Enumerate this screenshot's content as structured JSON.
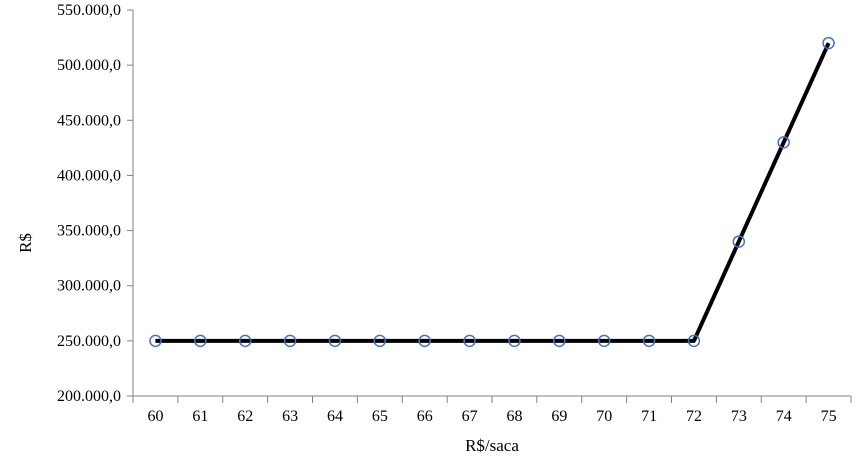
{
  "chart_data": {
    "type": "line",
    "title": "",
    "xlabel": "R$/saca",
    "ylabel": "R$",
    "categories": [
      "60",
      "61",
      "62",
      "63",
      "64",
      "65",
      "66",
      "67",
      "68",
      "69",
      "70",
      "71",
      "72",
      "73",
      "74",
      "75"
    ],
    "series": [
      {
        "values": [
          250000,
          250000,
          250000,
          250000,
          250000,
          250000,
          250000,
          250000,
          250000,
          250000,
          250000,
          250000,
          250000,
          340000,
          430000,
          520000
        ],
        "line_color": "#000000",
        "marker": "circle-open",
        "marker_color": "#4472C4"
      }
    ],
    "ylim": [
      200000,
      550000
    ],
    "yticks": [
      200000,
      250000,
      300000,
      350000,
      400000,
      450000,
      500000,
      550000
    ],
    "ytick_labels": [
      "200.000,0",
      "250.000,0",
      "300.000,0",
      "350.000,0",
      "400.000,0",
      "450.000,0",
      "500.000,0",
      "550.000,0"
    ],
    "grid": false,
    "legend": "none",
    "axis_color": "#808080"
  }
}
